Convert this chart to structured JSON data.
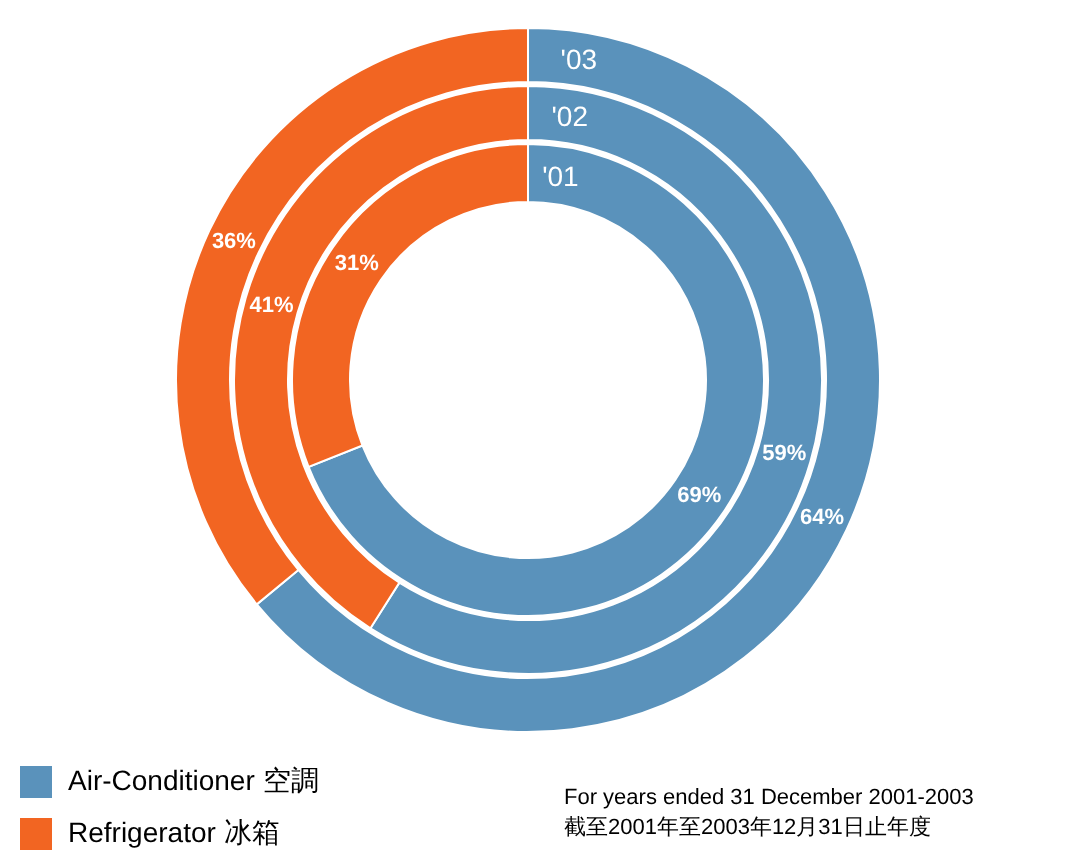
{
  "chart_data": {
    "type": "donut",
    "categories": [
      "Air-Conditioner 空調",
      "Refrigerator 冰箱"
    ],
    "colors": [
      "#5a92bb",
      "#f26522"
    ],
    "series": [
      {
        "name": "'03",
        "values": [
          64,
          36
        ],
        "value_labels": [
          "64%",
          "36%"
        ]
      },
      {
        "name": "'02",
        "values": [
          59,
          41
        ],
        "value_labels": [
          "59%",
          "41%"
        ]
      },
      {
        "name": "'01",
        "values": [
          69,
          31
        ],
        "value_labels": [
          "69%",
          "31%"
        ]
      }
    ],
    "legend": "bottom left",
    "annotations": [
      "For years ended 31 December 2001-2003",
      "截至2001年至2003年12月31日止年度"
    ]
  }
}
